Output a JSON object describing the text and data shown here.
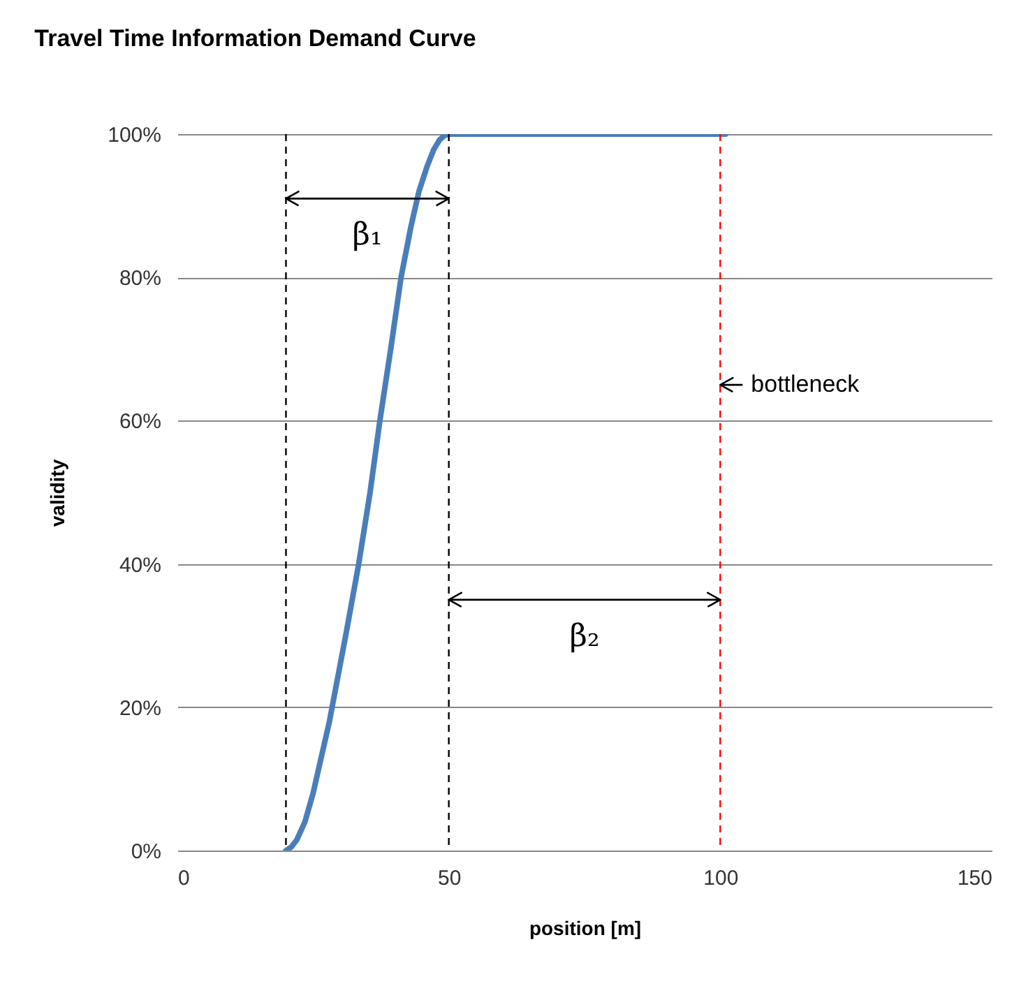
{
  "chart_data": {
    "type": "line",
    "title": "Travel Time Information Demand Curve",
    "xlabel": "position [m]",
    "ylabel": "validity",
    "x": [
      20,
      21,
      22,
      23.5,
      25,
      26.5,
      28,
      29.5,
      31,
      33.4,
      35.5,
      37.3,
      39.3,
      41.2,
      43,
      44.5,
      46,
      47.2,
      48.3,
      49.2,
      50,
      60,
      70,
      80,
      90,
      101
    ],
    "series": [
      {
        "color": "#4a7ebb",
        "values": [
          0,
          0.5,
          1.5,
          4,
          8,
          13,
          18,
          24,
          30,
          40,
          50,
          60,
          70,
          80,
          87,
          92,
          95.5,
          97.8,
          99.2,
          99.8,
          100,
          100,
          100,
          100,
          100,
          100
        ]
      }
    ],
    "xlim": [
      0,
      150
    ],
    "xticks": [
      0,
      50,
      100,
      150
    ],
    "ylim": [
      0,
      100
    ],
    "yticks": [
      {
        "value": 0,
        "label": "0%"
      },
      {
        "value": 20,
        "label": "20%"
      },
      {
        "value": 40,
        "label": "40%"
      },
      {
        "value": 60,
        "label": "60%"
      },
      {
        "value": 80,
        "label": "80%"
      },
      {
        "value": 100,
        "label": "100%"
      }
    ],
    "grid": "y",
    "marker": "none",
    "line_style": "solid",
    "ref_lines": [
      {
        "axis": "x",
        "value": 20,
        "color": "#000000",
        "line_style": "dashed"
      },
      {
        "axis": "x",
        "value": 50,
        "color": "#000000",
        "line_style": "dashed"
      },
      {
        "axis": "x",
        "value": 100,
        "color": "#ff0000",
        "line_style": "dashed"
      }
    ],
    "annotations": [
      "β₁",
      "β₂",
      "bottleneck"
    ]
  }
}
